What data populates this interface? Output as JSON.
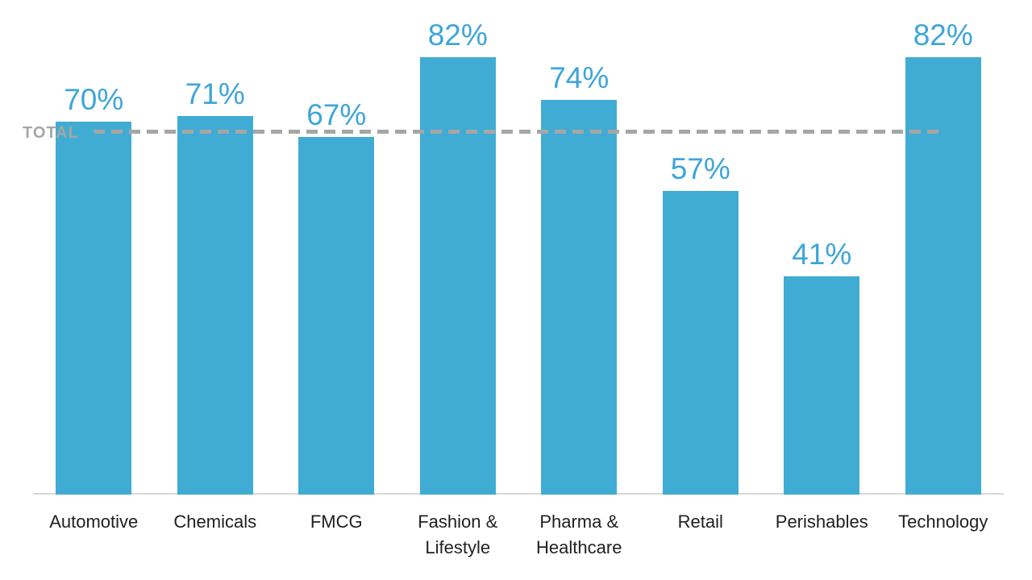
{
  "chart_data": {
    "type": "bar",
    "categories": [
      "Automotive",
      "Chemicals",
      "FMCG",
      "Fashion & Lifestyle",
      "Pharma & Healthcare",
      "Retail",
      "Perishables",
      "Technology"
    ],
    "values": [
      70,
      71,
      67,
      82,
      74,
      57,
      41,
      82
    ],
    "value_labels": [
      "70%",
      "71%",
      "67%",
      "82%",
      "74%",
      "57%",
      "41%",
      "82%"
    ],
    "title": "",
    "xlabel": "",
    "ylabel": "",
    "ylim": [
      0,
      92
    ],
    "grid": false,
    "legend": "none",
    "total_line": {
      "label": "TOTAL",
      "value": 68,
      "style": "dashed"
    },
    "colors": {
      "bar": "#41ACD3",
      "value_label": "#3EA5D9",
      "total_line": "#A6A6A6",
      "total_label": "#A6A6A6",
      "axis_line": "#D9D9D9",
      "category_label": "#212121",
      "background": "#FFFFFF"
    }
  }
}
